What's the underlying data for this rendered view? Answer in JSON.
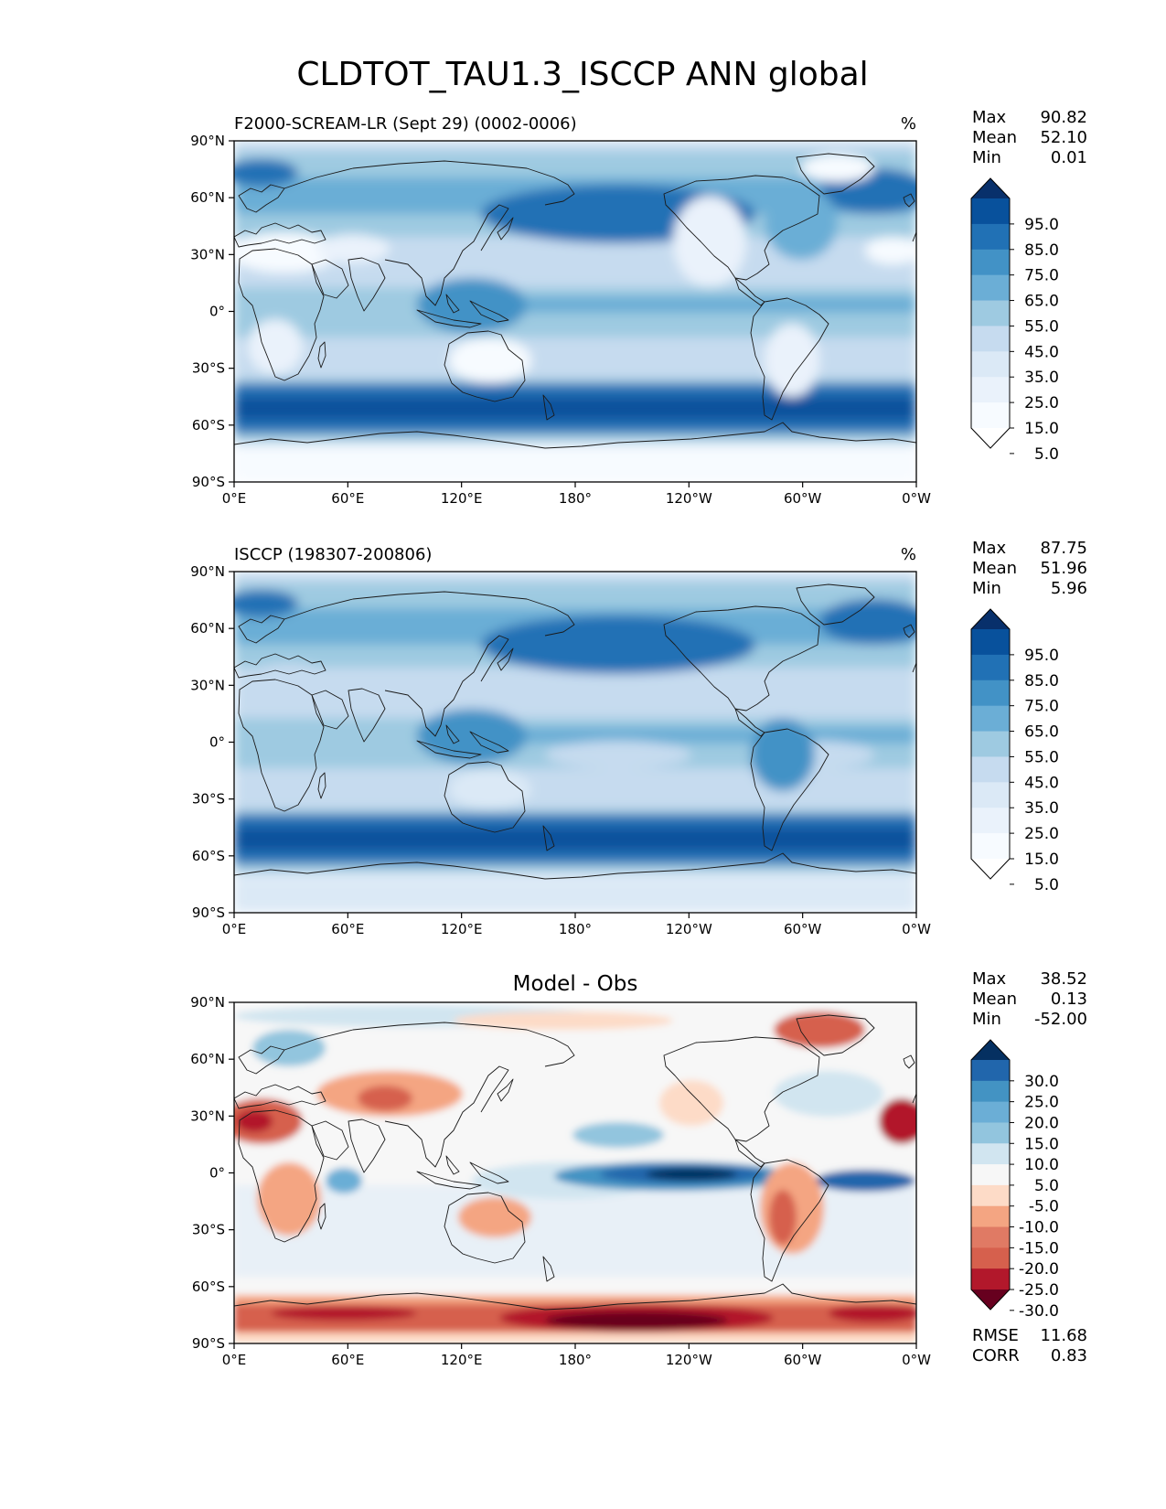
{
  "title": "CLDTOT_TAU1.3_ISCCP ANN global",
  "axes": {
    "lat_ticks": [
      "90°N",
      "60°N",
      "30°N",
      "0°",
      "30°S",
      "60°S",
      "90°S"
    ],
    "lon_ticks": [
      "0°E",
      "60°E",
      "120°E",
      "180°",
      "120°W",
      "60°W",
      "0°W"
    ]
  },
  "panels": [
    {
      "id": "model",
      "label": "F2000-SCREAM-LR (Sept 29) (0002-0006)",
      "units": "%",
      "stats": [
        {
          "name": "Max",
          "value": "90.82"
        },
        {
          "name": "Mean",
          "value": "52.10"
        },
        {
          "name": "Min",
          "value": "0.01"
        }
      ],
      "colorbar": {
        "labels": [
          "95.0",
          "85.0",
          "75.0",
          "65.0",
          "55.0",
          "45.0",
          "35.0",
          "25.0",
          "15.0",
          "5.0"
        ],
        "colors": [
          "#08306b",
          "#08519c",
          "#2171b5",
          "#4292c6",
          "#6baed6",
          "#9ecae1",
          "#c6dbef",
          "#dbe9f6",
          "#eaf2fb",
          "#f7fbff",
          "#ffffff"
        ]
      }
    },
    {
      "id": "obs",
      "label": "ISCCP (198307-200806)",
      "units": "%",
      "stats": [
        {
          "name": "Max",
          "value": "87.75"
        },
        {
          "name": "Mean",
          "value": "51.96"
        },
        {
          "name": "Min",
          "value": "5.96"
        }
      ],
      "colorbar": {
        "labels": [
          "95.0",
          "85.0",
          "75.0",
          "65.0",
          "55.0",
          "45.0",
          "35.0",
          "25.0",
          "15.0",
          "5.0"
        ],
        "colors": [
          "#08306b",
          "#08519c",
          "#2171b5",
          "#4292c6",
          "#6baed6",
          "#9ecae1",
          "#c6dbef",
          "#dbe9f6",
          "#eaf2fb",
          "#f7fbff",
          "#ffffff"
        ]
      }
    },
    {
      "id": "diff",
      "title": "Model - Obs",
      "stats": [
        {
          "name": "Max",
          "value": "38.52"
        },
        {
          "name": "Mean",
          "value": "0.13"
        },
        {
          "name": "Min",
          "value": "-52.00"
        }
      ],
      "colorbar": {
        "labels": [
          "30.0",
          "25.0",
          "20.0",
          "15.0",
          "10.0",
          "5.0",
          "-5.0",
          "-10.0",
          "-15.0",
          "-20.0",
          "-25.0",
          "-30.0"
        ],
        "colors": [
          "#053061",
          "#2166ac",
          "#4393c3",
          "#6baed6",
          "#92c5de",
          "#d1e5f0",
          "#f7f7f7",
          "#fddbc7",
          "#f4a582",
          "#e07a64",
          "#d6604d",
          "#b2182b",
          "#67001f"
        ]
      },
      "extra_stats": [
        {
          "name": "RMSE",
          "value": "11.68"
        },
        {
          "name": "CORR",
          "value": "0.83"
        }
      ]
    }
  ]
}
